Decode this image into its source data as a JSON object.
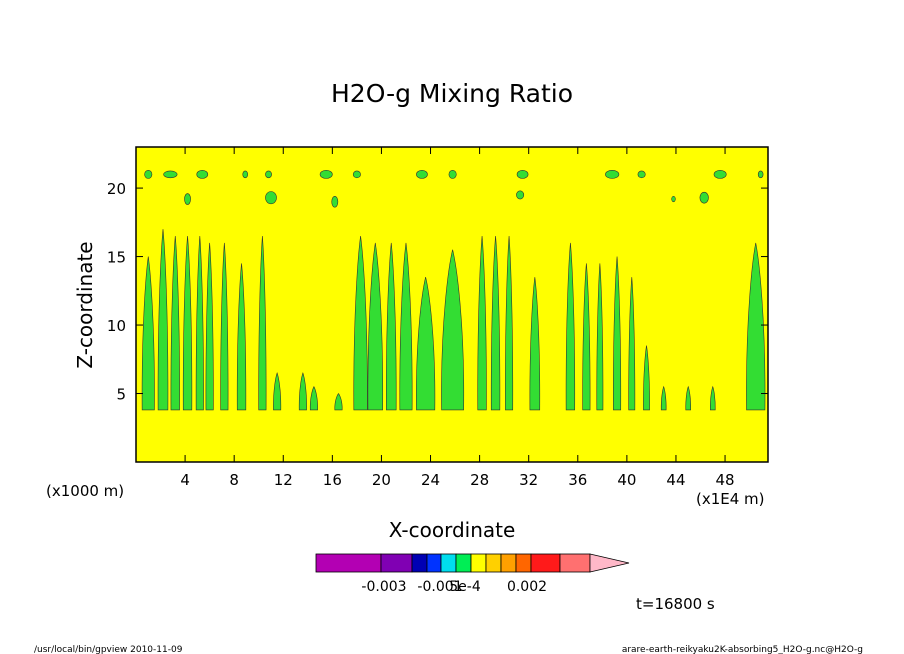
{
  "chart_data": {
    "type": "heatmap",
    "title": "H2O-g Mixing Ratio",
    "xlabel": "X-coordinate",
    "ylabel": "Z-coordinate",
    "x_unit_left": "(x1000 m)",
    "x_unit_right": "(x1E4 m)",
    "xlim": [
      0,
      51.5
    ],
    "ylim": [
      0,
      23
    ],
    "xticks": [
      4,
      8,
      12,
      16,
      20,
      24,
      28,
      32,
      36,
      40,
      44,
      48
    ],
    "xtick_labels": [
      "4",
      "8",
      "12",
      "16",
      "20",
      "24",
      "28",
      "32",
      "36",
      "40",
      "44",
      "48"
    ],
    "yticks": [
      5,
      10,
      15,
      20
    ],
    "ytick_labels": [
      "5",
      "10",
      "15",
      "20"
    ],
    "background_color": "#ffff00",
    "contour_color": "#33dd33",
    "plumes": [
      {
        "x": 1.0,
        "w": 1.0,
        "top": 15.0
      },
      {
        "x": 2.2,
        "w": 0.8,
        "top": 17.0
      },
      {
        "x": 3.2,
        "w": 0.7,
        "top": 16.5
      },
      {
        "x": 4.2,
        "w": 0.7,
        "top": 16.5
      },
      {
        "x": 5.2,
        "w": 0.6,
        "top": 16.5
      },
      {
        "x": 6.0,
        "w": 0.6,
        "top": 16.0
      },
      {
        "x": 7.2,
        "w": 0.6,
        "top": 16.0
      },
      {
        "x": 8.6,
        "w": 0.7,
        "top": 14.5
      },
      {
        "x": 10.3,
        "w": 0.6,
        "top": 16.5
      },
      {
        "x": 11.5,
        "w": 0.6,
        "top": 6.5
      },
      {
        "x": 13.6,
        "w": 0.6,
        "top": 6.5
      },
      {
        "x": 14.5,
        "w": 0.6,
        "top": 5.5
      },
      {
        "x": 16.5,
        "w": 0.6,
        "top": 5.0
      },
      {
        "x": 18.3,
        "w": 1.1,
        "top": 16.5
      },
      {
        "x": 19.5,
        "w": 1.2,
        "top": 16.0
      },
      {
        "x": 20.8,
        "w": 0.8,
        "top": 16.0
      },
      {
        "x": 22.0,
        "w": 1.0,
        "top": 16.0
      },
      {
        "x": 23.6,
        "w": 1.5,
        "top": 13.5
      },
      {
        "x": 25.8,
        "w": 1.8,
        "top": 15.5
      },
      {
        "x": 28.2,
        "w": 0.7,
        "top": 16.5
      },
      {
        "x": 29.3,
        "w": 0.7,
        "top": 16.5
      },
      {
        "x": 30.4,
        "w": 0.6,
        "top": 16.5
      },
      {
        "x": 32.5,
        "w": 0.8,
        "top": 13.5
      },
      {
        "x": 35.4,
        "w": 0.7,
        "top": 16.0
      },
      {
        "x": 36.7,
        "w": 0.6,
        "top": 14.5
      },
      {
        "x": 37.8,
        "w": 0.5,
        "top": 14.5
      },
      {
        "x": 39.2,
        "w": 0.6,
        "top": 15.0
      },
      {
        "x": 40.4,
        "w": 0.5,
        "top": 13.5
      },
      {
        "x": 41.6,
        "w": 0.5,
        "top": 8.5
      },
      {
        "x": 43.0,
        "w": 0.4,
        "top": 5.5
      },
      {
        "x": 45.0,
        "w": 0.4,
        "top": 5.5
      },
      {
        "x": 47.0,
        "w": 0.4,
        "top": 5.5
      },
      {
        "x": 50.5,
        "w": 1.5,
        "top": 16.0
      }
    ],
    "blobs": [
      {
        "x": 1.0,
        "y": 21.0,
        "w": 0.6,
        "h": 0.6
      },
      {
        "x": 2.8,
        "y": 21.0,
        "w": 1.1,
        "h": 0.5
      },
      {
        "x": 5.4,
        "y": 21.0,
        "w": 0.9,
        "h": 0.6
      },
      {
        "x": 8.9,
        "y": 21.0,
        "w": 0.4,
        "h": 0.5
      },
      {
        "x": 10.8,
        "y": 21.0,
        "w": 0.5,
        "h": 0.5
      },
      {
        "x": 15.5,
        "y": 21.0,
        "w": 1.0,
        "h": 0.6
      },
      {
        "x": 18.0,
        "y": 21.0,
        "w": 0.6,
        "h": 0.5
      },
      {
        "x": 23.3,
        "y": 21.0,
        "w": 0.9,
        "h": 0.6
      },
      {
        "x": 25.8,
        "y": 21.0,
        "w": 0.6,
        "h": 0.6
      },
      {
        "x": 31.5,
        "y": 21.0,
        "w": 0.9,
        "h": 0.6
      },
      {
        "x": 38.8,
        "y": 21.0,
        "w": 1.1,
        "h": 0.6
      },
      {
        "x": 41.2,
        "y": 21.0,
        "w": 0.6,
        "h": 0.5
      },
      {
        "x": 47.6,
        "y": 21.0,
        "w": 1.0,
        "h": 0.6
      },
      {
        "x": 50.9,
        "y": 21.0,
        "w": 0.4,
        "h": 0.5
      },
      {
        "x": 4.2,
        "y": 19.2,
        "w": 0.5,
        "h": 0.8
      },
      {
        "x": 11.0,
        "y": 19.3,
        "w": 0.9,
        "h": 0.9
      },
      {
        "x": 16.2,
        "y": 19.0,
        "w": 0.5,
        "h": 0.8
      },
      {
        "x": 31.3,
        "y": 19.5,
        "w": 0.6,
        "h": 0.6
      },
      {
        "x": 46.3,
        "y": 19.3,
        "w": 0.7,
        "h": 0.8
      },
      {
        "x": 43.8,
        "y": 19.2,
        "w": 0.3,
        "h": 0.4
      }
    ],
    "colorbar": {
      "colors": [
        "#b300b3",
        "#8000b3",
        "#0000b3",
        "#0033ff",
        "#00ddee",
        "#00ee55",
        "#ffff00",
        "#ffd000",
        "#ffa000",
        "#ff6600",
        "#ff1a1a",
        "#ff7070"
      ],
      "arrow_color": "#ffb8c8",
      "labels": [
        "-0.003",
        "-0.001",
        "5e-4",
        "0.002"
      ]
    },
    "time_label": "t=16800 s"
  },
  "footer": {
    "left": "/usr/local/bin/gpview  2010-11-09",
    "right": "arare-earth-reikyaku2K-absorbing5_H2O-g.nc@H2O-g"
  }
}
